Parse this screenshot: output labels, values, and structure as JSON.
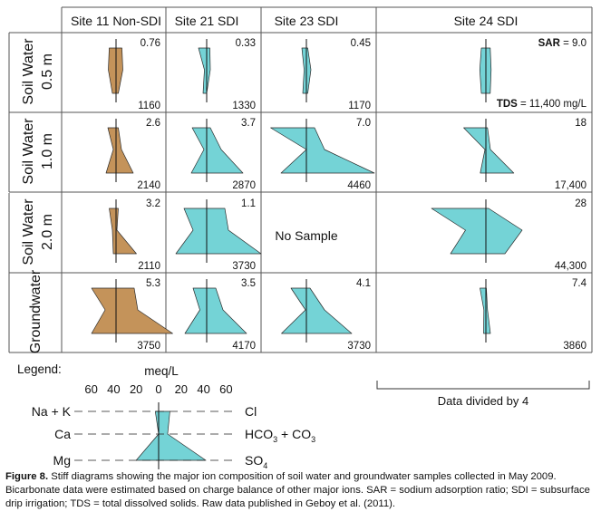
{
  "figure": {
    "columns": [
      "Site 11 Non-SDI",
      "Site 21 SDI",
      "Site 23 SDI",
      "Site 24 SDI"
    ],
    "rows": [
      {
        "line1": "Soil Water",
        "line2": "0.5 m"
      },
      {
        "line1": "Soil Water",
        "line2": "1.0 m"
      },
      {
        "line1": "Soil Water",
        "line2": "2.0 m"
      },
      {
        "line1": "Groundwater",
        "line2": ""
      }
    ],
    "fill_colors": {
      "non_sdi": "#c4935a",
      "sdi": "#74d3d6"
    },
    "sar_label": "SAR",
    "tds_label": "TDS",
    "sar_unit_text": " = 9.0",
    "tds_unit_text": " = 11,400 mg/L",
    "cells": [
      [
        {
          "sar": "0.76",
          "tds": "1160",
          "values": [
            15,
            17,
            8,
            13,
            15,
            5
          ],
          "fill": "non_sdi"
        },
        {
          "sar": "0.33",
          "tds": "1330",
          "values": [
            18,
            5,
            8,
            7,
            8,
            0
          ],
          "fill": "sdi"
        },
        {
          "sar": "0.45",
          "tds": "1170",
          "values": [
            10,
            5,
            8,
            3,
            10,
            3
          ],
          "fill": "sdi"
        },
        {
          "sar": "",
          "tds": "",
          "values": [
            20,
            27,
            20,
            19,
            23,
            19
          ],
          "fill": "sdi",
          "labels": "special"
        }
      ],
      [
        {
          "sar": "2.6",
          "tds": "2140",
          "values": [
            18,
            6,
            22,
            5,
            12,
            38
          ],
          "fill": "non_sdi"
        },
        {
          "sar": "3.7",
          "tds": "2870",
          "values": [
            32,
            6,
            34,
            8,
            32,
            80
          ],
          "fill": "sdi"
        },
        {
          "sar": "7.0",
          "tds": "4460",
          "values": [
            79,
            0,
            56,
            18,
            40,
            150
          ],
          "fill": "sdi"
        },
        {
          "sar": "18",
          "tds": "17,400",
          "values": [
            98,
            4,
            25,
            7,
            20,
            123
          ],
          "fill": "sdi"
        }
      ],
      [
        {
          "sar": "3.2",
          "tds": "2110",
          "values": [
            15,
            8,
            6,
            5,
            2,
            45
          ],
          "fill": "non_sdi"
        },
        {
          "sar": "1.1",
          "tds": "3730",
          "values": [
            50,
            30,
            68,
            40,
            48,
            120
          ],
          "fill": "sdi"
        },
        {
          "sar": "",
          "tds": "",
          "values": [],
          "fill": "sdi",
          "no_sample": "No Sample"
        },
        {
          "sar": "28",
          "tds": "44,300",
          "values": [
            240,
            90,
            156,
            12,
            160,
            84
          ],
          "fill": "sdi"
        }
      ],
      [
        {
          "sar": "5.3",
          "tds": "3750",
          "values": [
            54,
            24,
            54,
            40,
            48,
            125
          ],
          "fill": "non_sdi"
        },
        {
          "sar": "3.5",
          "tds": "4170",
          "values": [
            30,
            15,
            48,
            20,
            36,
            88
          ],
          "fill": "sdi"
        },
        {
          "sar": "4.1",
          "tds": "3730",
          "values": [
            34,
            2,
            55,
            8,
            40,
            100
          ],
          "fill": "sdi"
        },
        {
          "sar": "7.4",
          "tds": "3860",
          "values": [
            26,
            9,
            10,
            2,
            7,
            20
          ],
          "fill": "sdi"
        }
      ]
    ],
    "site24_note": "Data divided by 4"
  },
  "legend": {
    "label": "Legend:",
    "axis_title": "meq/L",
    "ticks": [
      "60",
      "40",
      "20",
      "0",
      "20",
      "40",
      "60"
    ],
    "cations": [
      "Na + K",
      "Ca",
      "Mg"
    ],
    "anions": [
      {
        "main": "Cl",
        "sub": "",
        "extra": "",
        "extra_sub": ""
      },
      {
        "main": "HCO",
        "sub": "3",
        "extra": " + CO",
        "extra_sub": "3"
      },
      {
        "main": "SO",
        "sub": "4",
        "extra": "",
        "extra_sub": ""
      }
    ],
    "example_values": [
      3,
      0,
      20,
      10,
      8,
      42
    ]
  },
  "caption": {
    "label": "Figure 8.",
    "text": " Stiff diagrams showing the major ion composition of soil water and groundwater samples collected in May 2009. Bicarbonate data were estimated based on charge balance of other major ions. SAR = sodium adsorption ratio; SDI = subsurface drip irrigation; TDS = total dissolved solids. Raw data published in Geboy et al. (2011)."
  }
}
